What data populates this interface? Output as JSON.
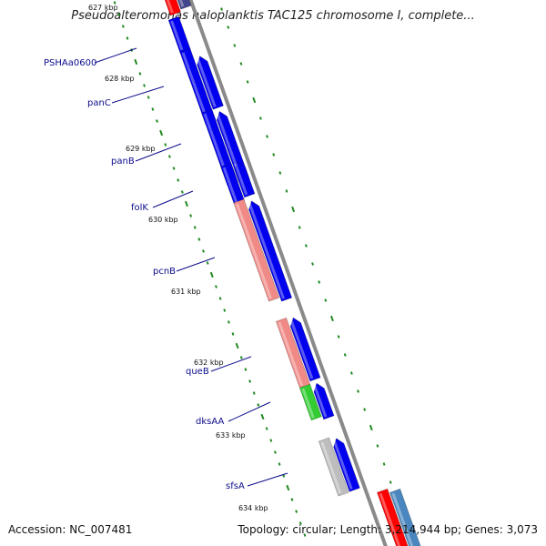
{
  "title": "Pseudoalteromonas haloplanktis TAC125 chromosome I, complete...",
  "accession": "Accession: NC_007481",
  "summary": "Topology: circular; Length: 3,214,944 bp; Genes: 3,073",
  "colors": {
    "backbone": "#8a8a8a",
    "tick": "#1f8a1f",
    "cds_blue": "#0000ee",
    "cds_red": "#ff0000",
    "cds_salmon": "#f08a86",
    "cds_green": "#33cc33",
    "cds_gray": "#bdbdbd",
    "cds_steel": "#4a86bf",
    "cds_navy": "#44448c",
    "label": "#0b0b8c"
  },
  "kbp_ticks": [
    "627 kbp",
    "628 kbp",
    "629 kbp",
    "630 kbp",
    "631 kbp",
    "632 kbp",
    "633 kbp",
    "634 kbp"
  ],
  "genes": [
    {
      "label": "PSHAa0600"
    },
    {
      "label": "panC"
    },
    {
      "label": "panB"
    },
    {
      "label": "folK"
    },
    {
      "label": "pcnB"
    },
    {
      "label": "queB"
    },
    {
      "label": "dksAA"
    },
    {
      "label": "sfsA"
    }
  ]
}
